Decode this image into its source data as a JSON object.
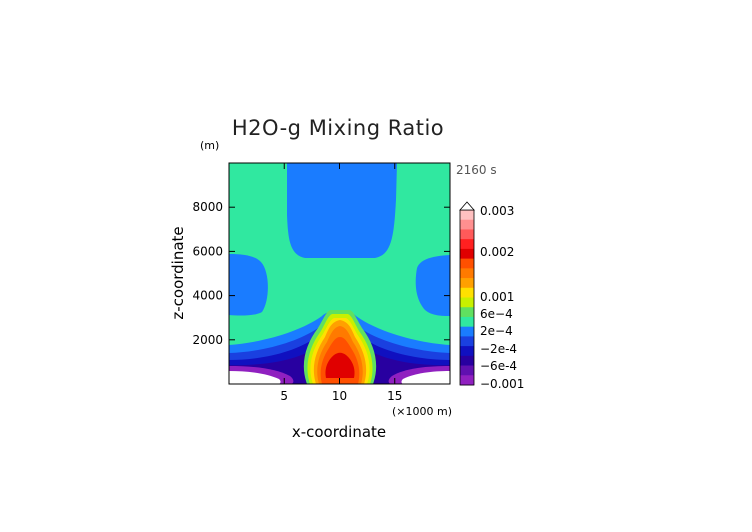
{
  "chart_data": {
    "type": "heatmap",
    "title": "H2O-g Mixing Ratio",
    "xlabel": "x-coordinate",
    "ylabel": "z-coordinate",
    "x_unit": "(×1000 m)",
    "y_unit": "(m)",
    "time_label": "2160 s",
    "xlim": [
      0,
      20
    ],
    "ylim": [
      0,
      10000
    ],
    "x_ticks": [
      5,
      10,
      15
    ],
    "x_tick_labels": [
      "5",
      "10",
      "15"
    ],
    "y_ticks": [
      2000,
      4000,
      6000,
      8000
    ],
    "y_tick_labels": [
      "2000",
      "4000",
      "6000",
      "8000"
    ],
    "grid": false,
    "colorbar": {
      "labels": [
        {
          "value": 0.003,
          "text": "0.003"
        },
        {
          "value": 0.002,
          "text": "0.002"
        },
        {
          "value": 0.001,
          "text": "0.001"
        },
        {
          "value": 0.0006,
          "text": "6e-4"
        },
        {
          "value": 0.0002,
          "text": "2e-4"
        },
        {
          "value": -0.0002,
          "text": "-2e-4"
        },
        {
          "value": -0.0006,
          "text": "-6e-4"
        },
        {
          "value": -0.001,
          "text": "-0.001"
        }
      ],
      "levels_top_to_bottom": [
        "#ffc0c0",
        "#ff9090",
        "#ff5a5a",
        "#ff2020",
        "#e00000",
        "#ff5000",
        "#ff7a00",
        "#ffa000",
        "#ffe000",
        "#c8f000",
        "#60e060",
        "#30e8a0",
        "#1a7cff",
        "#1a40e0",
        "#1010c0",
        "#2800a0",
        "#6010b0",
        "#9020c0"
      ]
    },
    "regions": {
      "background": "#30e8a0",
      "blue_anomaly": "#1a7cff",
      "moist_core": "#ff2020",
      "dry_pockets": "#9020c0"
    }
  }
}
